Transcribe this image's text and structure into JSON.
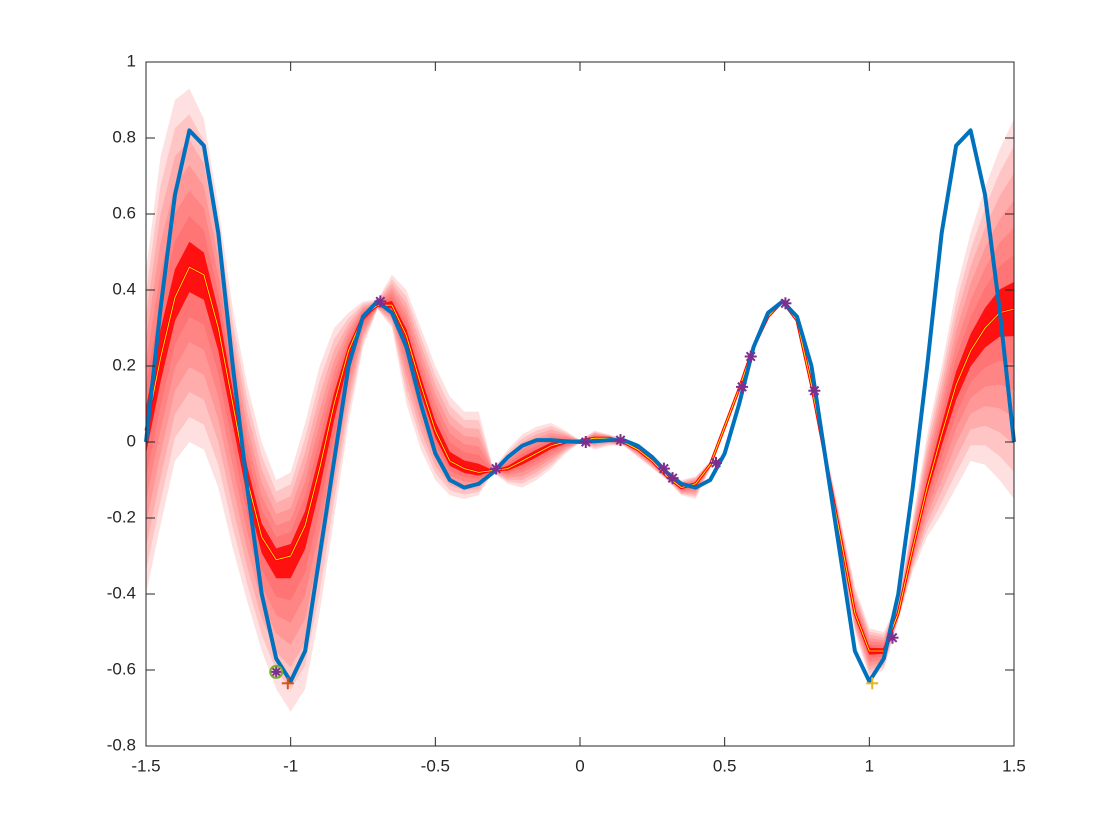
{
  "chart_data": {
    "type": "line",
    "xlim": [
      -1.5,
      1.5
    ],
    "ylim": [
      -0.8,
      1
    ],
    "xticks": [
      -1.5,
      -1,
      -0.5,
      0,
      0.5,
      1,
      1.5
    ],
    "yticks": [
      -0.8,
      -0.6,
      -0.4,
      -0.2,
      0,
      0.2,
      0.4,
      0.6,
      0.8,
      1
    ],
    "x": [
      -1.5,
      -1.45,
      -1.4,
      -1.35,
      -1.3,
      -1.25,
      -1.2,
      -1.15,
      -1.1,
      -1.05,
      -1,
      -0.95,
      -0.9,
      -0.85,
      -0.8,
      -0.75,
      -0.7,
      -0.65,
      -0.6,
      -0.55,
      -0.5,
      -0.45,
      -0.4,
      -0.35,
      -0.3,
      -0.25,
      -0.2,
      -0.15,
      -0.1,
      -0.05,
      0,
      0.05,
      0.1,
      0.15,
      0.2,
      0.25,
      0.3,
      0.35,
      0.4,
      0.45,
      0.5,
      0.55,
      0.6,
      0.65,
      0.7,
      0.75,
      0.8,
      0.85,
      0.9,
      0.95,
      1,
      1.05,
      1.1,
      1.15,
      1.2,
      1.25,
      1.3,
      1.35,
      1.4,
      1.45,
      1.5
    ],
    "band": {
      "color": "#ff0000",
      "upper": [
        0.45,
        0.75,
        0.9,
        0.93,
        0.85,
        0.62,
        0.35,
        0.15,
        0,
        -0.1,
        -0.08,
        0.05,
        0.2,
        0.3,
        0.34,
        0.37,
        0.375,
        0.44,
        0.4,
        0.3,
        0.2,
        0.12,
        0.08,
        0.08,
        -0.07,
        -0.02,
        0.02,
        0.04,
        0.05,
        0.03,
        0.005,
        0.03,
        0.02,
        0.01,
        -0.01,
        -0.04,
        -0.08,
        -0.1,
        -0.09,
        -0.05,
        0.04,
        0.14,
        0.255,
        0.335,
        0.375,
        0.325,
        0.16,
        -0.02,
        -0.2,
        -0.38,
        -0.49,
        -0.5,
        -0.42,
        -0.2,
        0.02,
        0.2,
        0.4,
        0.55,
        0.67,
        0.77,
        0.85
      ],
      "lower": [
        -0.4,
        -0.22,
        -0.05,
        0,
        -0.02,
        -0.12,
        -0.28,
        -0.42,
        -0.55,
        -0.65,
        -0.71,
        -0.65,
        -0.45,
        -0.2,
        0.05,
        0.25,
        0.35,
        0.3,
        0.1,
        -0.02,
        -0.1,
        -0.14,
        -0.15,
        -0.14,
        -0.08,
        -0.11,
        -0.12,
        -0.1,
        -0.07,
        -0.03,
        -0.002,
        -0.02,
        -0.01,
        -0.01,
        -0.04,
        -0.07,
        -0.1,
        -0.14,
        -0.15,
        -0.07,
        0.03,
        0.13,
        0.245,
        0.325,
        0.365,
        0.315,
        0.14,
        -0.08,
        -0.3,
        -0.5,
        -0.62,
        -0.6,
        -0.47,
        -0.34,
        -0.25,
        -0.19,
        -0.12,
        -0.05,
        -0.06,
        -0.1,
        -0.15
      ]
    },
    "series": [
      {
        "color": "#ff0000",
        "values": [
          0.03,
          0.22,
          0.38,
          0.46,
          0.44,
          0.3,
          0.1,
          -0.1,
          -0.25,
          -0.31,
          -0.3,
          -0.22,
          -0.07,
          0.1,
          0.24,
          0.33,
          0.36,
          0.36,
          0.28,
          0.15,
          0.03,
          -0.05,
          -0.07,
          -0.08,
          -0.075,
          -0.07,
          -0.05,
          -0.03,
          -0.01,
          0,
          0.003,
          0.01,
          0.01,
          0,
          -0.02,
          -0.05,
          -0.09,
          -0.12,
          -0.11,
          -0.06,
          0.04,
          0.14,
          0.25,
          0.33,
          0.37,
          0.32,
          0.15,
          -0.05,
          -0.25,
          -0.45,
          -0.55,
          -0.55,
          -0.45,
          -0.28,
          -0.12,
          0.02,
          0.15,
          0.24,
          0.3,
          0.34,
          0.35
        ]
      },
      {
        "color": "#0072bd",
        "values": [
          0,
          0.35,
          0.65,
          0.82,
          0.78,
          0.55,
          0.2,
          -0.12,
          -0.4,
          -0.57,
          -0.63,
          -0.55,
          -0.3,
          -0.05,
          0.2,
          0.33,
          0.37,
          0.34,
          0.25,
          0.1,
          -0.03,
          -0.1,
          -0.12,
          -0.11,
          -0.08,
          -0.04,
          -0.01,
          0.005,
          0.005,
          0.002,
          0,
          0.002,
          0.005,
          0.005,
          -0.01,
          -0.04,
          -0.08,
          -0.11,
          -0.12,
          -0.1,
          -0.03,
          0.1,
          0.25,
          0.34,
          0.37,
          0.33,
          0.2,
          -0.05,
          -0.3,
          -0.55,
          -0.63,
          -0.57,
          -0.4,
          -0.12,
          0.2,
          0.55,
          0.78,
          0.82,
          0.65,
          0.35,
          0
        ]
      }
    ],
    "points": [
      {
        "marker": "asterisk",
        "color": "#7e2f8e",
        "x": [
          -1.05,
          -0.69,
          -0.29,
          0.02,
          0.14,
          0.29,
          0.32,
          0.47,
          0.56,
          0.59,
          0.71,
          0.81,
          1.08
        ],
        "y": [
          -0.605,
          0.37,
          -0.07,
          0,
          0.005,
          -0.07,
          -0.095,
          -0.055,
          0.145,
          0.225,
          0.365,
          0.135,
          -0.515
        ]
      },
      {
        "marker": "circle",
        "color": "#77ac30",
        "x": [
          -1.05
        ],
        "y": [
          -0.605
        ]
      },
      {
        "marker": "plus",
        "color": "#d95319",
        "x": [
          -1.01
        ],
        "y": [
          -0.635
        ]
      },
      {
        "marker": "plus",
        "color": "#edb120",
        "x": [
          1.01
        ],
        "y": [
          -0.635
        ]
      }
    ]
  }
}
